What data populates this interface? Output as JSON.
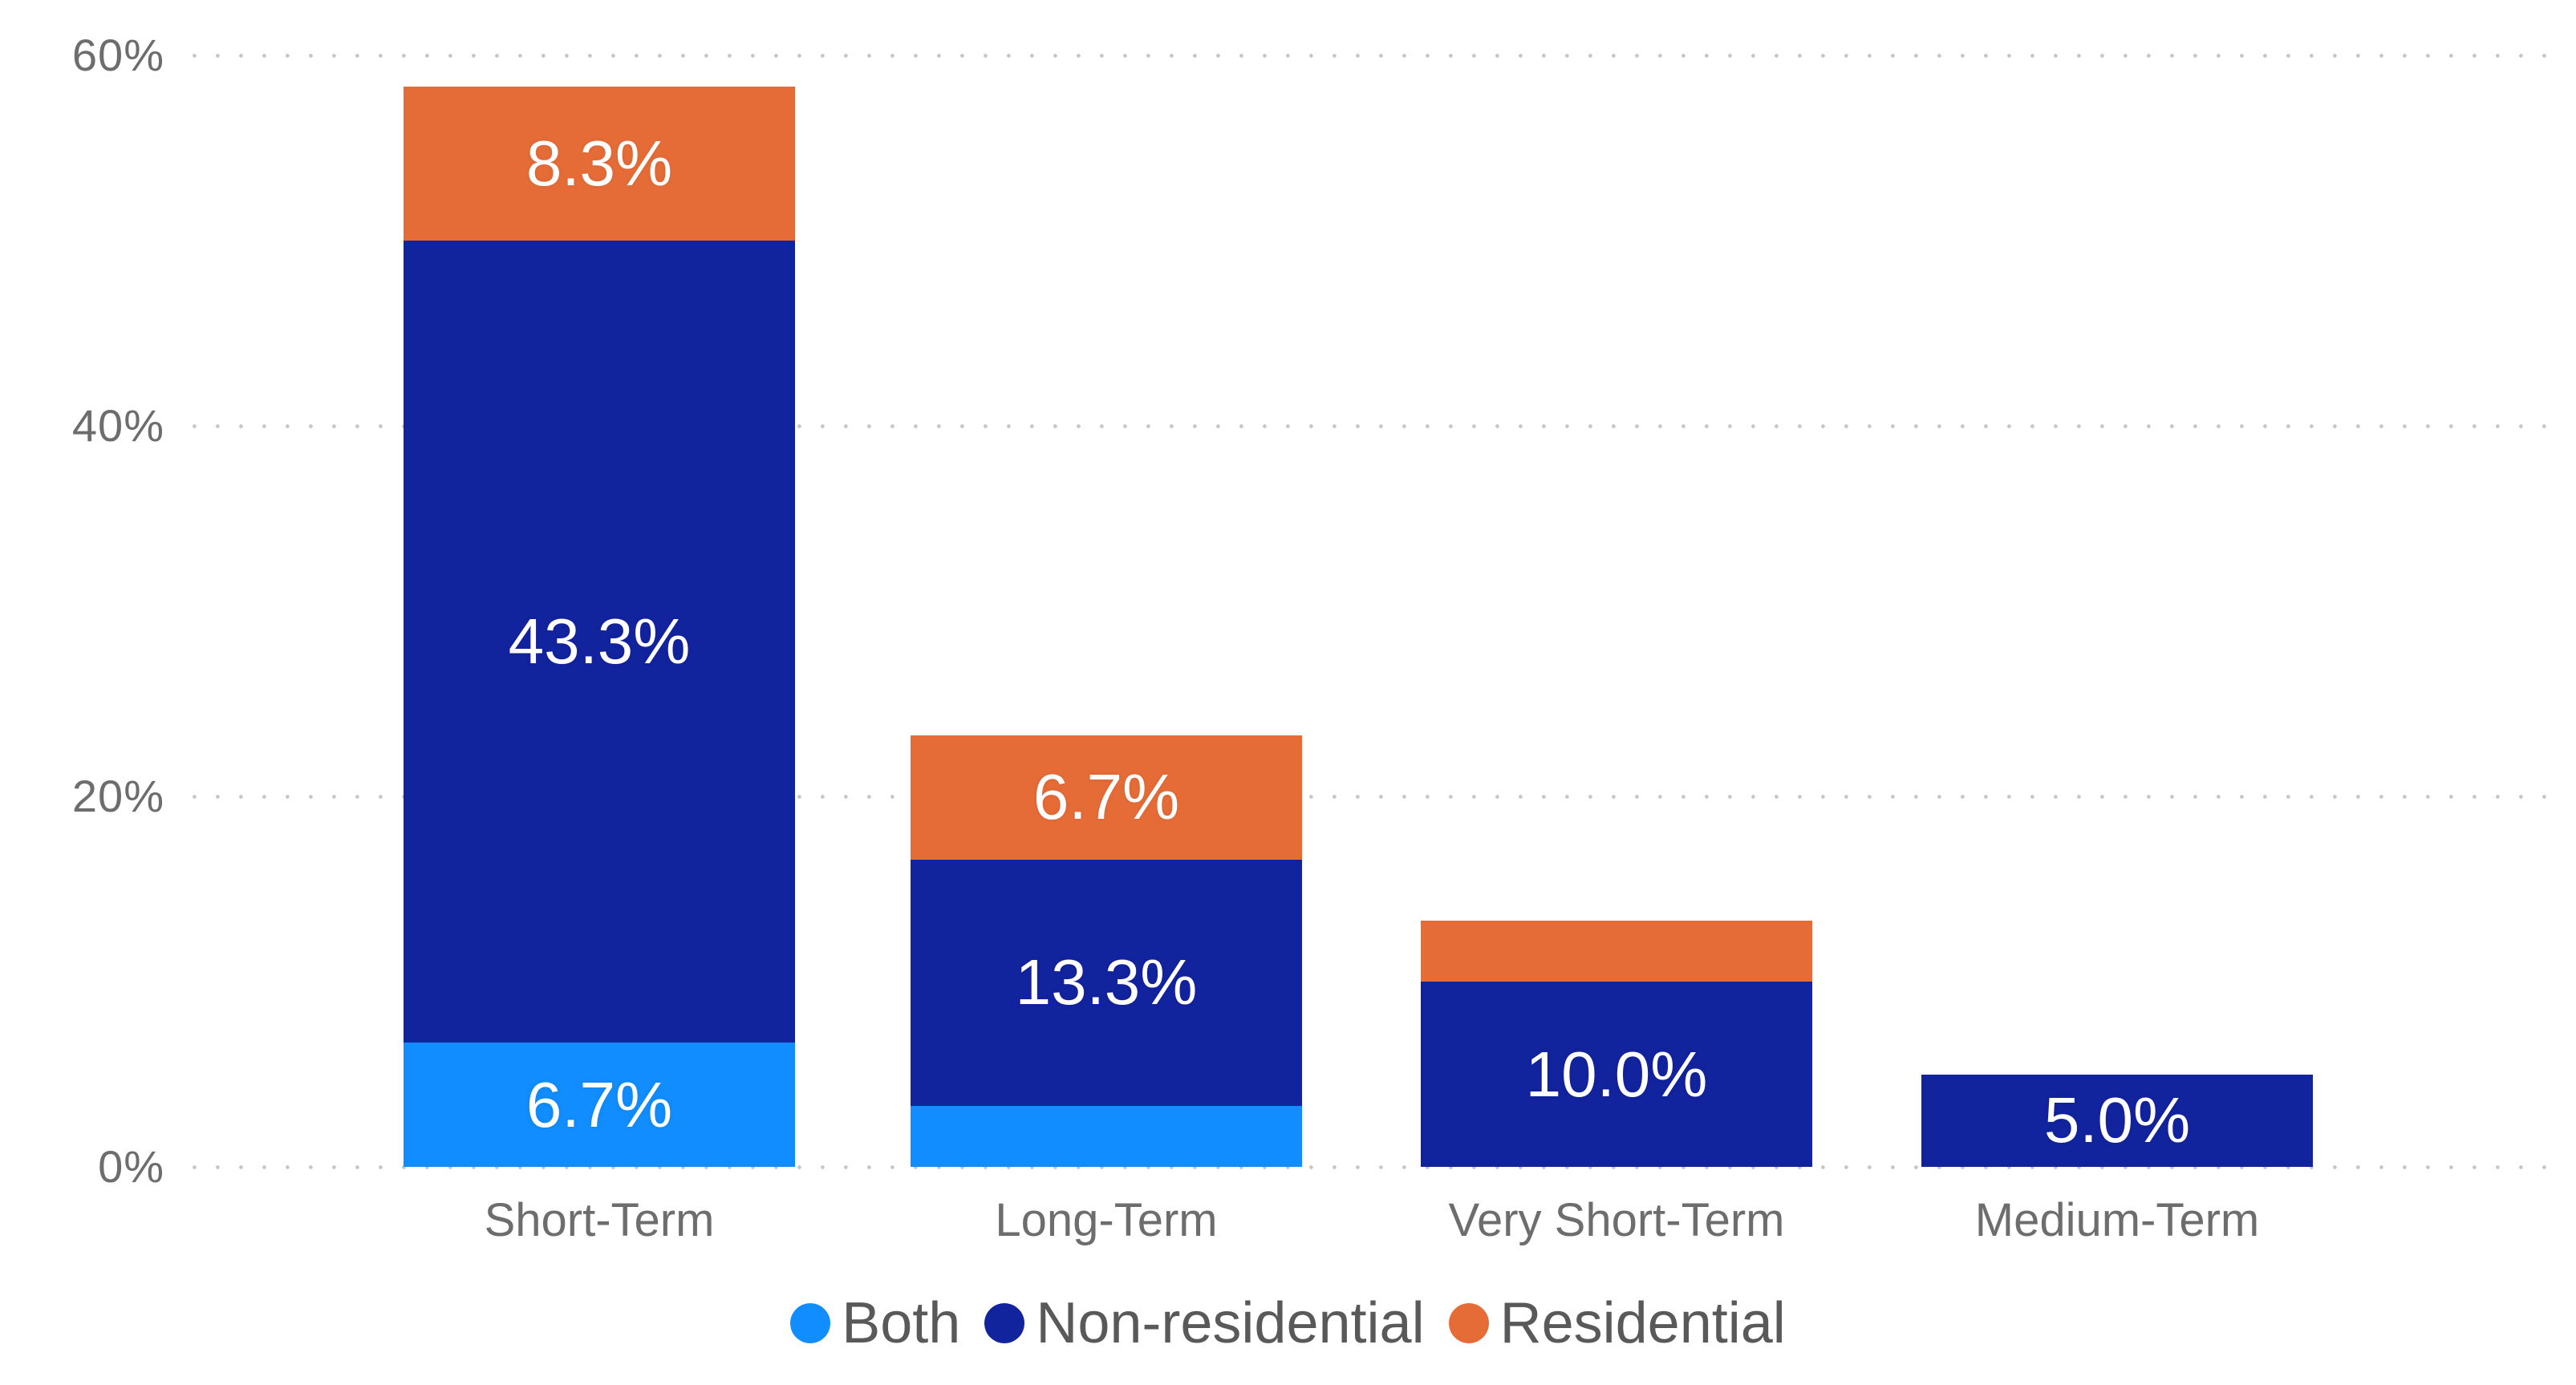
{
  "chart_data": {
    "type": "bar",
    "stacked": true,
    "title": "",
    "xlabel": "",
    "ylabel": "",
    "categories": [
      "Short-Term",
      "Long-Term",
      "Very Short-Term",
      "Medium-Term"
    ],
    "series": [
      {
        "name": "Both",
        "color": "#118DFF",
        "values": [
          6.7,
          3.3,
          0,
          0
        ],
        "labels": [
          "6.7%",
          "",
          "",
          ""
        ]
      },
      {
        "name": "Non-residential",
        "color": "#12239E",
        "values": [
          43.3,
          13.3,
          10.0,
          5.0
        ],
        "labels": [
          "43.3%",
          "13.3%",
          "10.0%",
          "5.0%"
        ]
      },
      {
        "name": "Residential",
        "color": "#E66C37",
        "values": [
          8.3,
          6.7,
          3.3,
          0
        ],
        "labels": [
          "8.3%",
          "6.7%",
          "",
          ""
        ]
      }
    ],
    "totals": [
      58.3,
      23.3,
      13.3,
      5.0
    ],
    "y_axis": {
      "tick_labels": [
        "0%",
        "20%",
        "40%",
        "60%"
      ],
      "tick_values": [
        0,
        20,
        40,
        60
      ],
      "ylim": [
        0,
        60
      ],
      "format": "percent",
      "gridlines": "dotted"
    },
    "legend": {
      "position": "bottom",
      "entries": [
        "Both",
        "Non-residential",
        "Residential"
      ]
    },
    "data_label_color": "#FFFFFF",
    "axis_text_color": "#6d6d6d",
    "legend_text_color": "#595959"
  }
}
